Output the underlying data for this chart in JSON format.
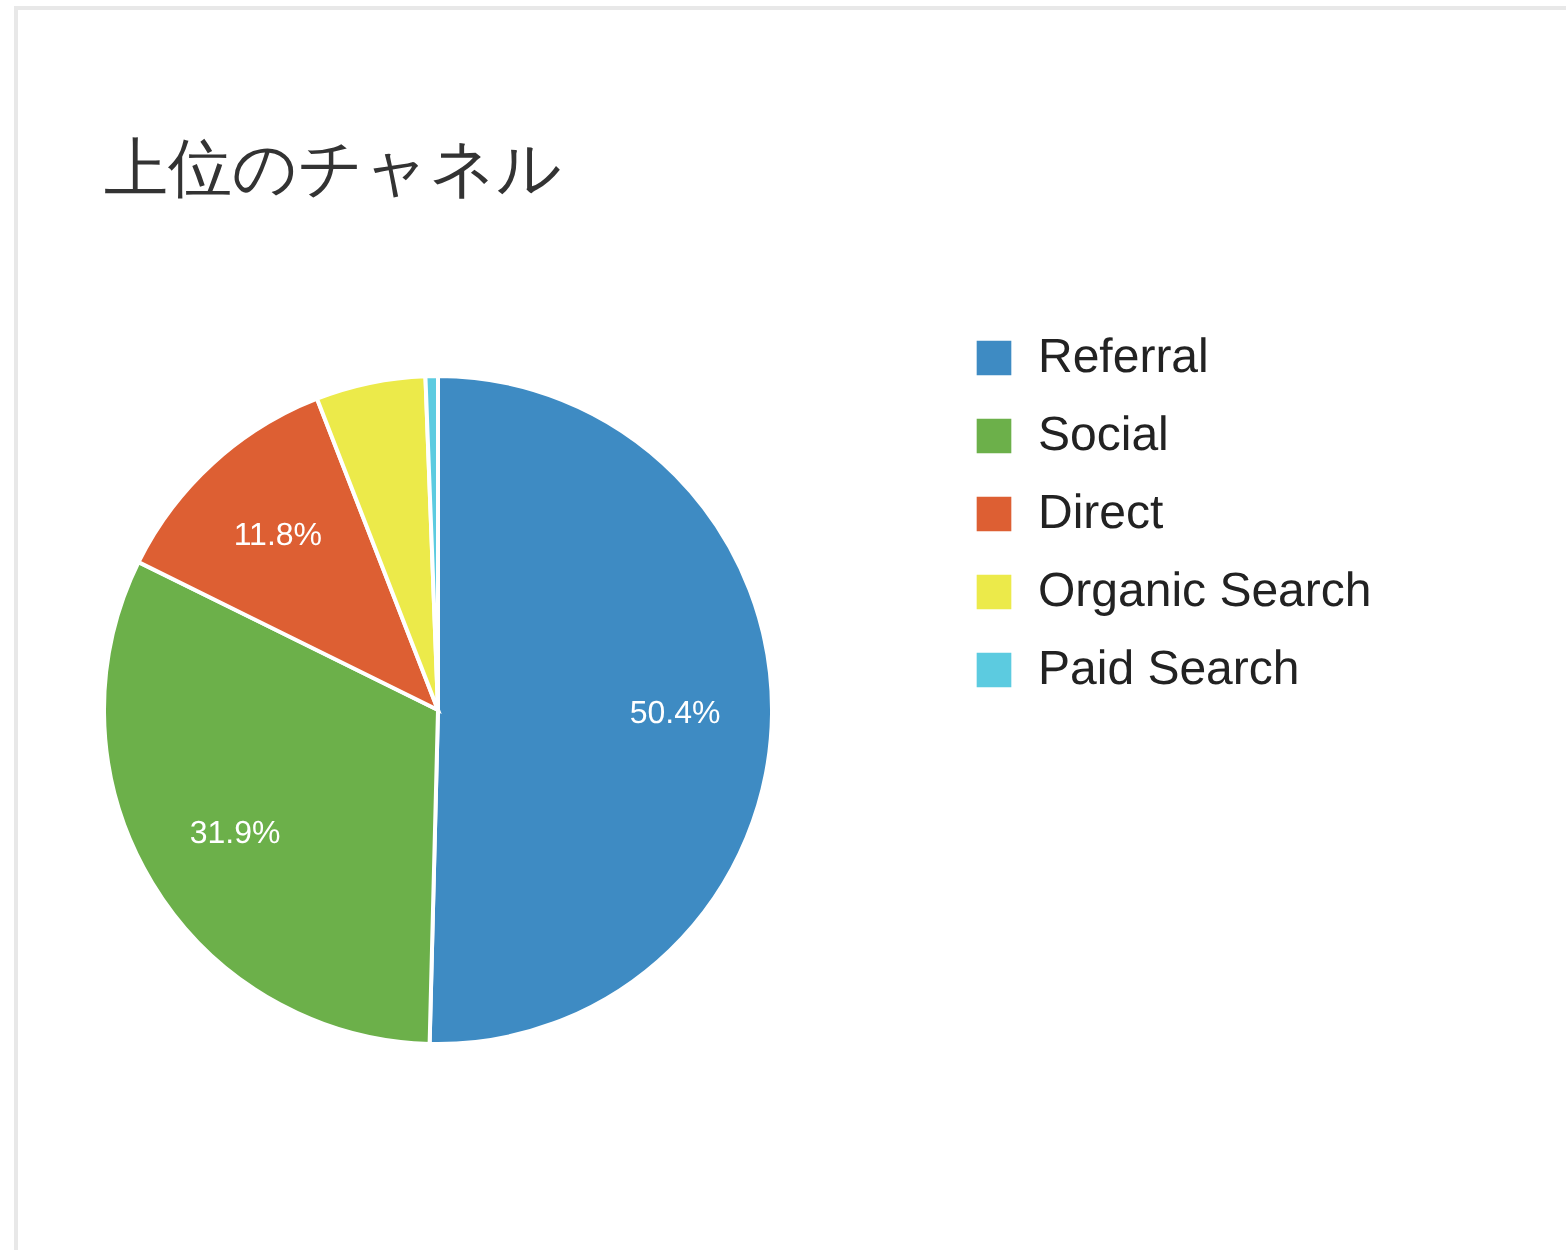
{
  "chart_data": {
    "type": "pie",
    "title": "上位のチャネル",
    "categories": [
      "Referral",
      "Social",
      "Direct",
      "Organic Search",
      "Paid Search"
    ],
    "values": [
      50.4,
      31.9,
      11.8,
      5.3,
      0.6
    ],
    "colors": [
      "#3e8bc3",
      "#6cb04a",
      "#dd5f33",
      "#ecea4a",
      "#5ccbe0"
    ],
    "value_labels": [
      "50.4%",
      "31.9%",
      "11.8%",
      null,
      null
    ],
    "legend": "right"
  }
}
